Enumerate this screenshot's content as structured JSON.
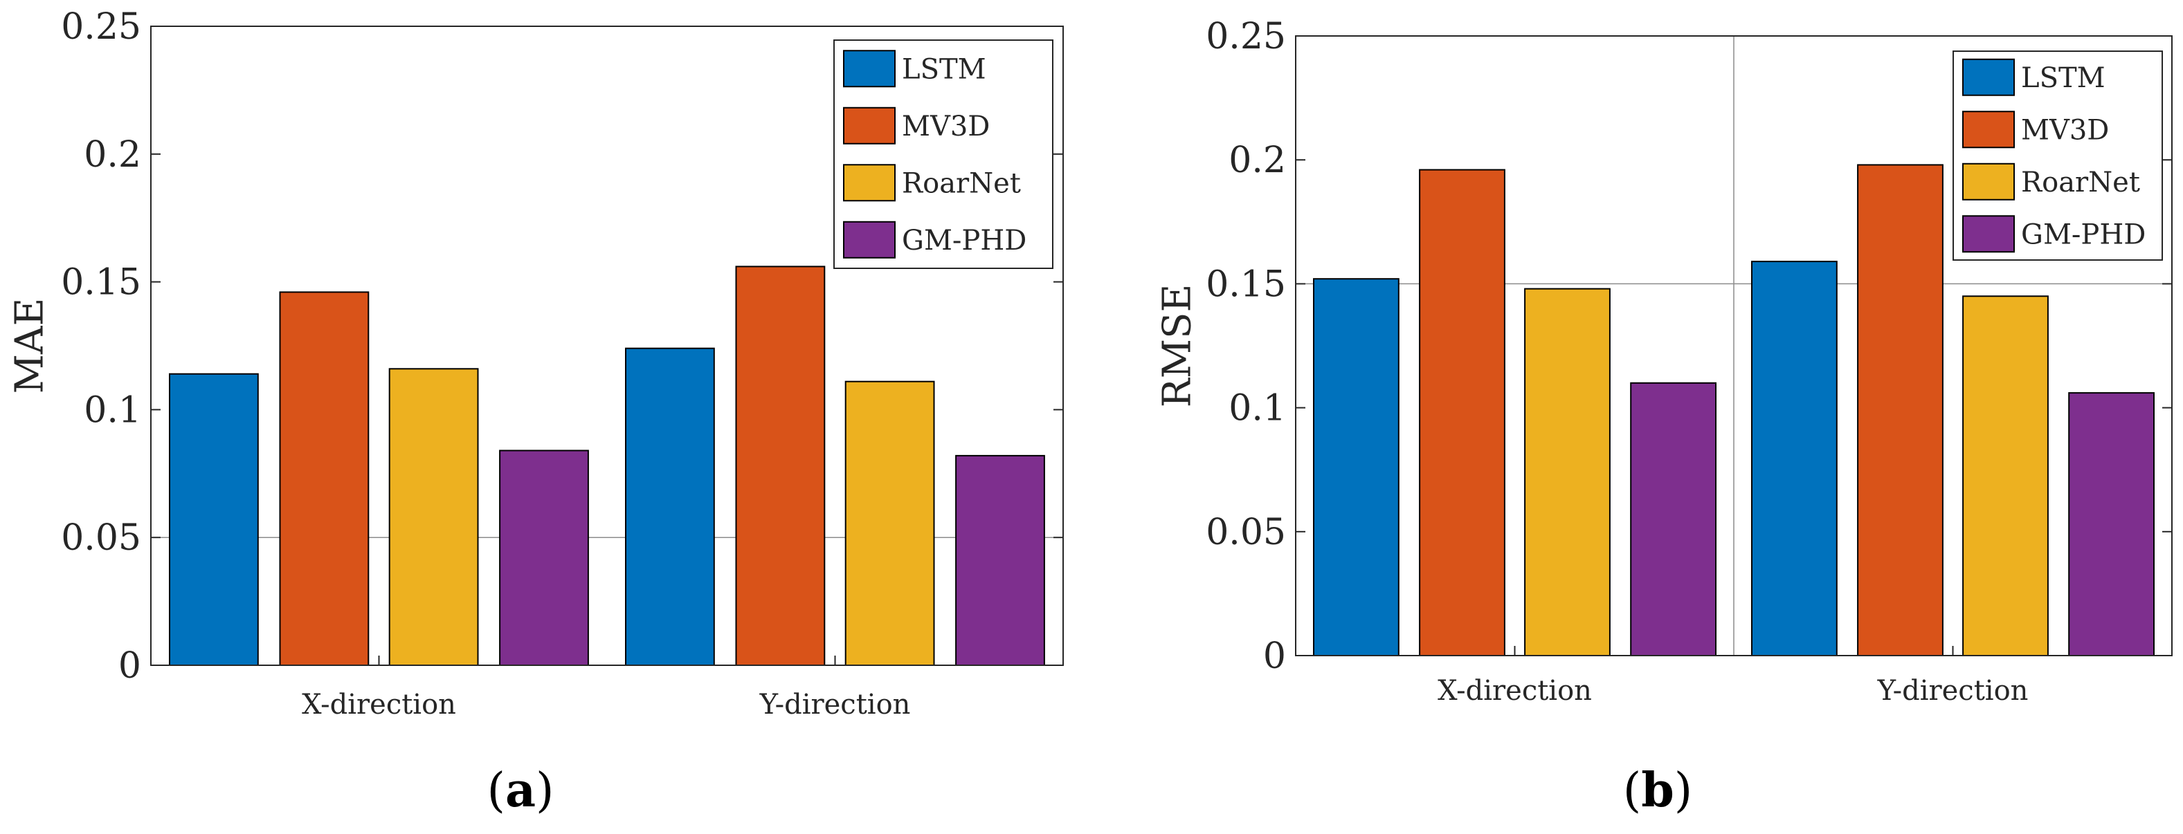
{
  "chart_data": [
    {
      "type": "bar",
      "panel_label": "a",
      "categories": [
        "X-direction",
        "Y-direction"
      ],
      "ylabel": "MAE",
      "xlabel": "",
      "ylim": [
        0,
        0.25
      ],
      "yticks": [
        0,
        0.05,
        0.1,
        0.15,
        0.2,
        0.25
      ],
      "ytick_labels": [
        "0",
        "0.05",
        "0.1",
        "0.15",
        "0.2",
        "0.25"
      ],
      "grid": {
        "y": [
          0.05
        ],
        "x": []
      },
      "legend_position": "top-right",
      "series": [
        {
          "name": "LSTM",
          "values": [
            0.114,
            0.124
          ]
        },
        {
          "name": "MV3D",
          "values": [
            0.146,
            0.156
          ]
        },
        {
          "name": "RoarNet",
          "values": [
            0.116,
            0.111
          ]
        },
        {
          "name": "GM-PHD",
          "values": [
            0.084,
            0.082
          ]
        }
      ]
    },
    {
      "type": "bar",
      "panel_label": "b",
      "categories": [
        "X-direction",
        "Y-direction"
      ],
      "ylabel": "RMSE",
      "xlabel": "",
      "ylim": [
        0,
        0.25
      ],
      "yticks": [
        0,
        0.05,
        0.1,
        0.15,
        0.2,
        0.25
      ],
      "ytick_labels": [
        "0",
        "0.05",
        "0.1",
        "0.15",
        "0.2",
        "0.25"
      ],
      "grid": {
        "y": [
          0.15
        ],
        "x": [
          0.5,
          1.5
        ]
      },
      "legend_position": "top-right",
      "series": [
        {
          "name": "LSTM",
          "values": [
            0.152,
            0.159
          ]
        },
        {
          "name": "MV3D",
          "values": [
            0.196,
            0.198
          ]
        },
        {
          "name": "RoarNet",
          "values": [
            0.148,
            0.145
          ]
        },
        {
          "name": "GM-PHD",
          "values": [
            0.11,
            0.106
          ]
        }
      ]
    }
  ],
  "colors": {
    "LSTM": "#0072BD",
    "MV3D": "#D95319",
    "RoarNet": "#EDB120",
    "GM-PHD": "#7E2F8E"
  }
}
